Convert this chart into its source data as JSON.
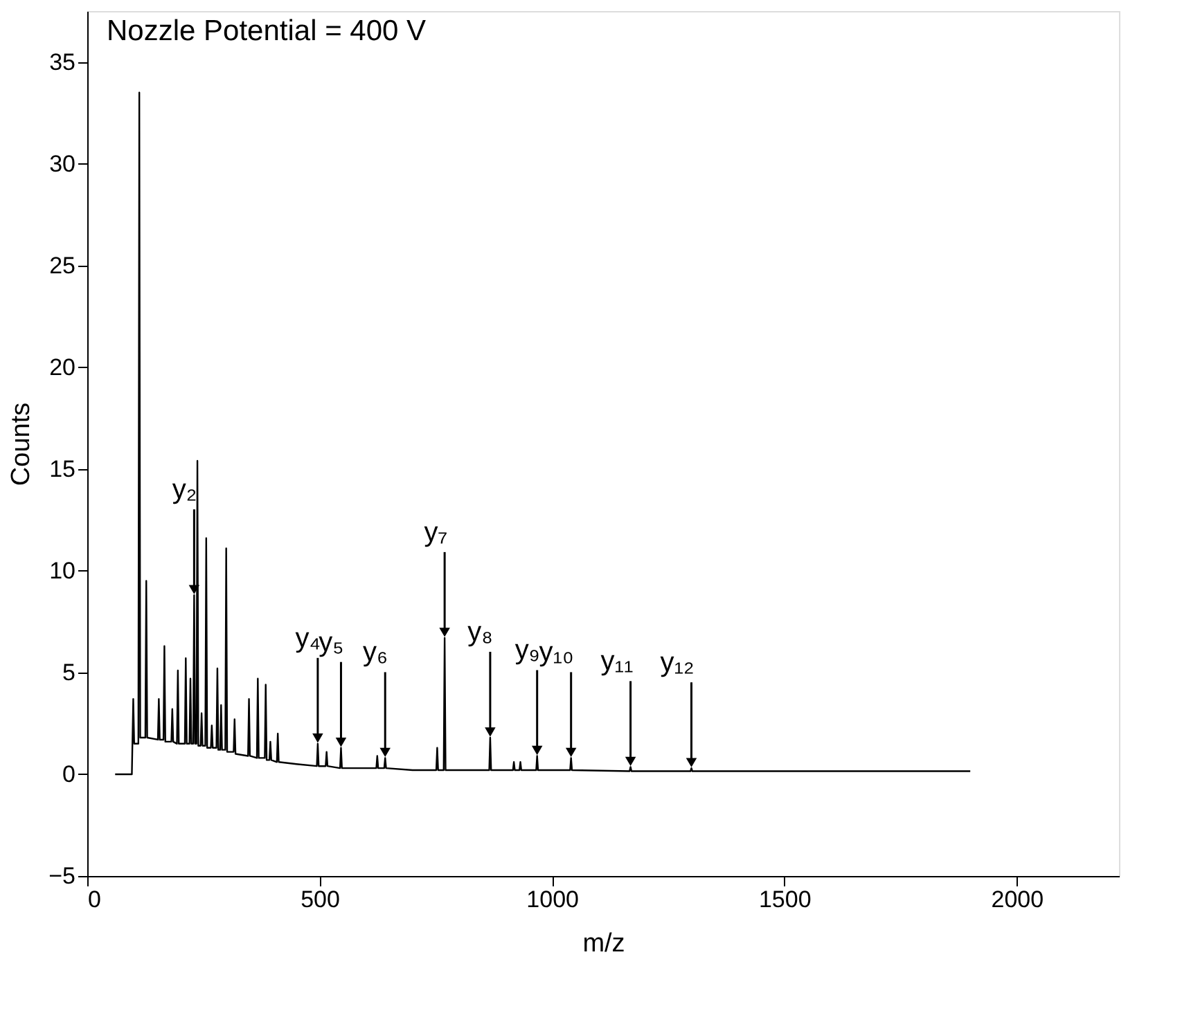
{
  "chart_data": {
    "type": "line",
    "title": "Nozzle Potential = 400 V",
    "xlabel": "m/z",
    "ylabel": "Counts",
    "xlim": [
      0,
      2220
    ],
    "ylim": [
      -5,
      37.5
    ],
    "xticks": [
      0,
      500,
      1000,
      1500,
      2000
    ],
    "yticks": [
      -5,
      0,
      5,
      10,
      15,
      20,
      25,
      30,
      35
    ],
    "grid": false,
    "marker": "none",
    "line_style": "solid",
    "series": [
      {
        "color": "#000000",
        "x": [
          60,
          96,
          99,
          101,
          110,
          112,
          114,
          125,
          127,
          129,
          152,
          154,
          156,
          164,
          166,
          168,
          181,
          183,
          185,
          193,
          195,
          197,
          210,
          212,
          214,
          220,
          222,
          224,
          228,
          230,
          232,
          235,
          237,
          239,
          244,
          246,
          248,
          254,
          256,
          258,
          266,
          268,
          270,
          278,
          280,
          282,
          286,
          288,
          290,
          297,
          299,
          301,
          315,
          317,
          319,
          346,
          348,
          350,
          365,
          367,
          369,
          382,
          384,
          386,
          392,
          394,
          396,
          408,
          410,
          412,
          450,
          494,
          496,
          498,
          513,
          515,
          517,
          544,
          546,
          548,
          622,
          624,
          626,
          639,
          641,
          643,
          700,
          751,
          753,
          755,
          767,
          769,
          771,
          820,
          865,
          867,
          869,
          916,
          918,
          920,
          930,
          932,
          934,
          966,
          968,
          970,
          1039,
          1041,
          1043,
          1167,
          1169,
          1171,
          1298,
          1300,
          1302,
          1500,
          1900
        ],
        "values": [
          0,
          0,
          3.7,
          1.5,
          1.5,
          33.5,
          1.8,
          1.8,
          9.5,
          1.8,
          1.7,
          3.7,
          1.7,
          1.7,
          6.3,
          1.6,
          1.6,
          3.2,
          1.6,
          1.5,
          5.1,
          1.5,
          1.5,
          5.7,
          1.5,
          1.5,
          4.7,
          1.5,
          1.5,
          8.8,
          1.5,
          1.5,
          15.4,
          1.4,
          1.4,
          3.0,
          1.4,
          1.4,
          11.6,
          1.3,
          1.3,
          2.4,
          1.3,
          1.3,
          5.2,
          1.2,
          1.2,
          3.4,
          1.2,
          1.2,
          11.1,
          1.1,
          1.1,
          2.7,
          1.0,
          0.9,
          3.7,
          0.9,
          0.8,
          4.7,
          0.8,
          0.8,
          4.4,
          0.7,
          0.7,
          1.6,
          0.7,
          0.6,
          2.0,
          0.6,
          0.5,
          0.4,
          1.5,
          0.4,
          0.4,
          1.1,
          0.4,
          0.3,
          1.3,
          0.3,
          0.3,
          0.9,
          0.3,
          0.3,
          0.8,
          0.3,
          0.2,
          0.2,
          1.3,
          0.2,
          0.2,
          6.7,
          0.2,
          0.2,
          0.2,
          1.8,
          0.2,
          0.2,
          0.6,
          0.2,
          0.2,
          0.6,
          0.2,
          0.2,
          0.9,
          0.2,
          0.2,
          0.8,
          0.2,
          0.15,
          0.36,
          0.15,
          0.15,
          0.3,
          0.15,
          0.15,
          0.15
        ]
      }
    ],
    "annotations": [
      {
        "text": "y₂",
        "x": 230,
        "y": 8.8
      },
      {
        "text": "y₄",
        "x": 496,
        "y": 1.5
      },
      {
        "text": "y₅",
        "x": 546,
        "y": 1.3
      },
      {
        "text": "y₆",
        "x": 641,
        "y": 0.8
      },
      {
        "text": "y₇",
        "x": 769,
        "y": 6.7
      },
      {
        "text": "y₈",
        "x": 867,
        "y": 1.8
      },
      {
        "text": "y₉",
        "x": 968,
        "y": 0.9
      },
      {
        "text": "y₁₀",
        "x": 1041,
        "y": 0.8
      },
      {
        "text": "y₁₁",
        "x": 1169,
        "y": 0.36
      },
      {
        "text": "y₁₂",
        "x": 1300,
        "y": 0.3
      }
    ]
  }
}
